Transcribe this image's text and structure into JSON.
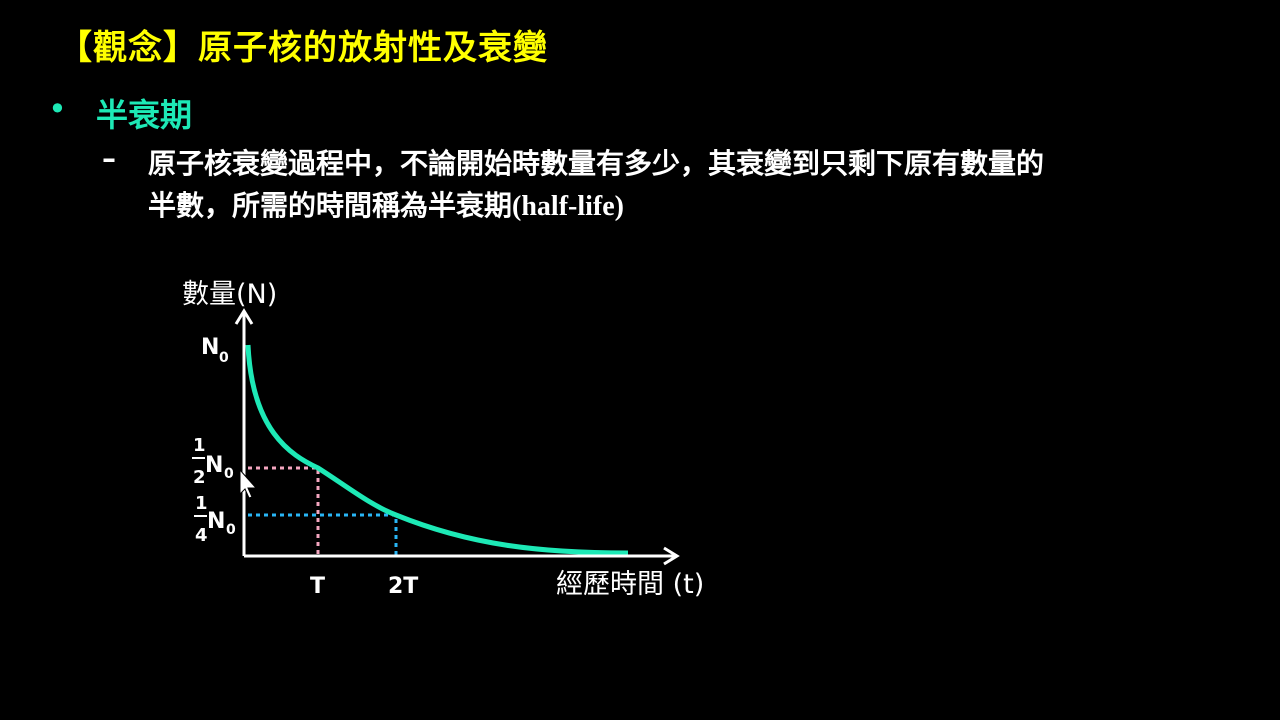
{
  "slide": {
    "title": "【觀念】原子核的放射性及衰變",
    "bullet": {
      "marker": "•",
      "heading": "半衰期",
      "sub_marker": "–",
      "text_line1": "原子核衰變過程中，不論開始時數量有多少，其衰變到只剩下原有數量的",
      "text_line2": "半數，所需的時間稱為半衰期",
      "text_line2_en": "(half-life)"
    }
  },
  "diagram": {
    "y_axis_label": "數量(N)",
    "x_axis_label": "經歷時間 (t)",
    "y_labels": {
      "n0": "N",
      "n0_sub": "0",
      "half_num": "1",
      "half_den": "2",
      "quarter_num": "1",
      "quarter_den": "4"
    },
    "x_labels": [
      "T",
      "2T"
    ],
    "colors": {
      "curve": "#1de9b6",
      "half_guide": "#f4a6c0",
      "quarter_guide": "#29b6f6",
      "axes": "#ffffff",
      "title": "#ffff00",
      "heading": "#1de9b6"
    }
  }
}
